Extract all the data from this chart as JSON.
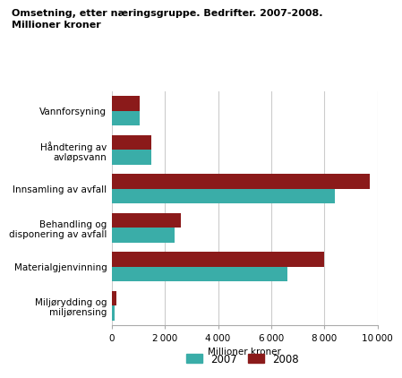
{
  "title_line1": "Omsetning, etter næringsgruppe. Bedrifter. 2007-2008.",
  "title_line2": "Millioner kroner",
  "categories": [
    "Vannforsyning",
    "Håndtering av\navløpsvann",
    "Innsamling av avfall",
    "Behandling og\ndisponering av avfall",
    "Materialgjenvinning",
    "Miljørydding og\nmiljørensing"
  ],
  "values_2007": [
    1050,
    1480,
    8400,
    2350,
    6600,
    100
  ],
  "values_2008": [
    1050,
    1480,
    9700,
    2600,
    8000,
    185
  ],
  "color_2007": "#3aada8",
  "color_2008": "#8b1a1a",
  "xlim": [
    0,
    10000
  ],
  "xticks": [
    0,
    2000,
    4000,
    6000,
    8000,
    10000
  ],
  "xlabel": "Millioner kroner",
  "legend_2007": "2007",
  "legend_2008": "2008",
  "bar_height": 0.38,
  "background_color": "#ffffff",
  "grid_color": "#cccccc"
}
